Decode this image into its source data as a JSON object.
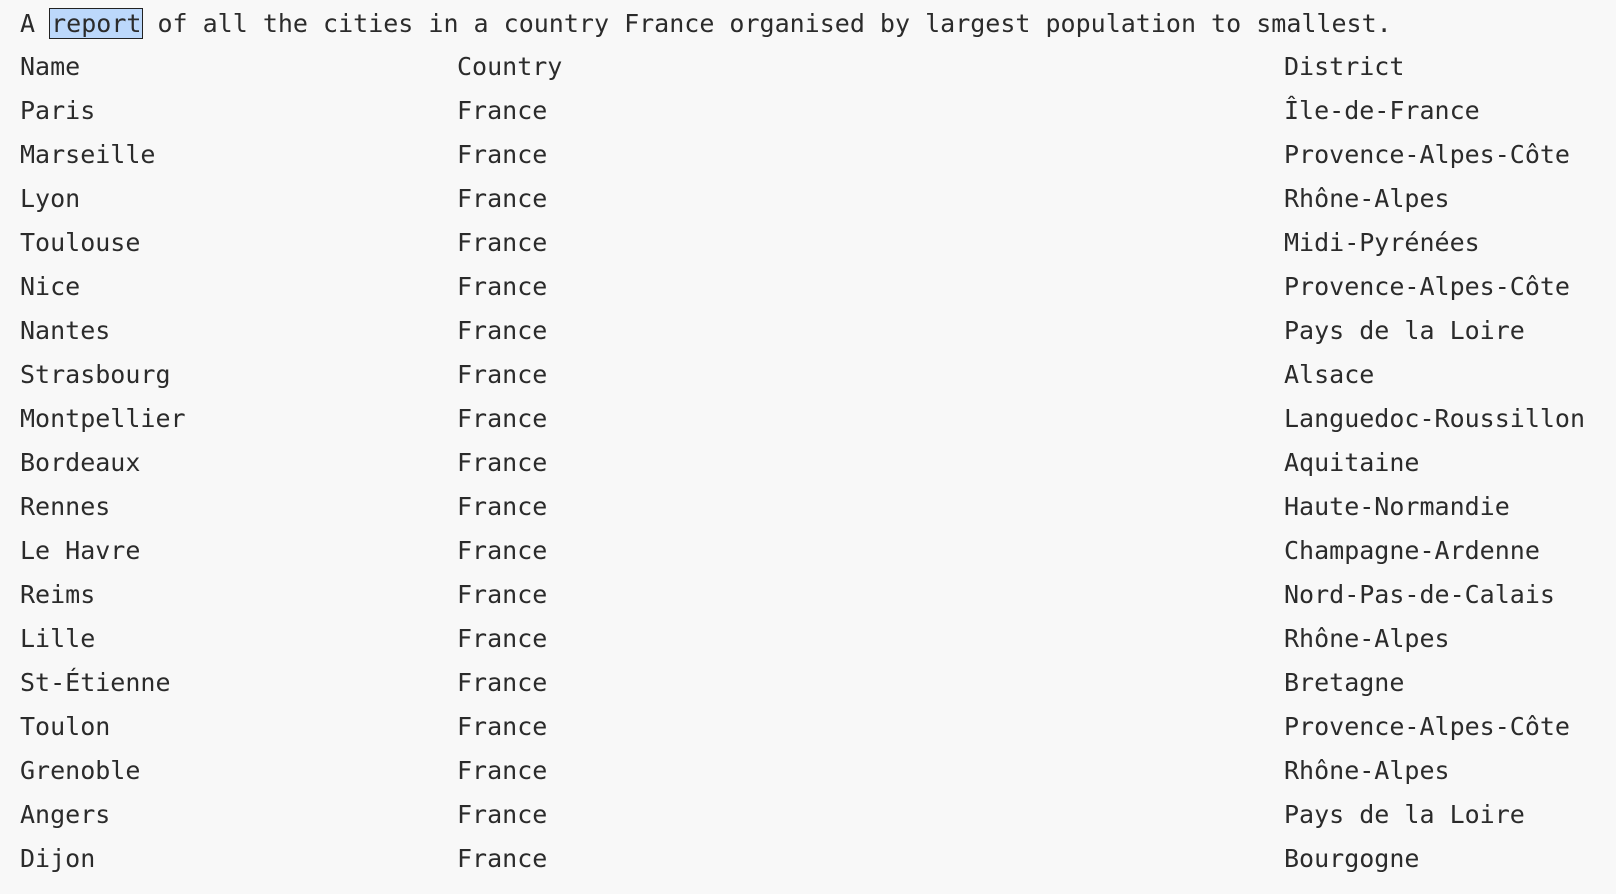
{
  "header": {
    "before": "A ",
    "selected": "report",
    "after": " of all the cities in a country France organised by largest population to smallest."
  },
  "table": {
    "columns": [
      "Name",
      "Country",
      "District"
    ],
    "rows": [
      [
        "Paris",
        "France",
        "Île-de-France"
      ],
      [
        "Marseille",
        "France",
        "Provence-Alpes-Côte"
      ],
      [
        "Lyon",
        "France",
        "Rhône-Alpes"
      ],
      [
        "Toulouse",
        "France",
        "Midi-Pyrénées"
      ],
      [
        "Nice",
        "France",
        "Provence-Alpes-Côte"
      ],
      [
        "Nantes",
        "France",
        "Pays de la Loire"
      ],
      [
        "Strasbourg",
        "France",
        "Alsace"
      ],
      [
        "Montpellier",
        "France",
        "Languedoc-Roussillon"
      ],
      [
        "Bordeaux",
        "France",
        "Aquitaine"
      ],
      [
        "Rennes",
        "France",
        "Haute-Normandie"
      ],
      [
        "Le Havre",
        "France",
        "Champagne-Ardenne"
      ],
      [
        "Reims",
        "France",
        "Nord-Pas-de-Calais"
      ],
      [
        "Lille",
        "France",
        "Rhône-Alpes"
      ],
      [
        "St-Étienne",
        "France",
        "Bretagne"
      ],
      [
        "Toulon",
        "France",
        "Provence-Alpes-Côte"
      ],
      [
        "Grenoble",
        "France",
        "Rhône-Alpes"
      ],
      [
        "Angers",
        "France",
        "Pays de la Loire"
      ],
      [
        "Dijon",
        "France",
        "Bourgogne"
      ]
    ]
  }
}
